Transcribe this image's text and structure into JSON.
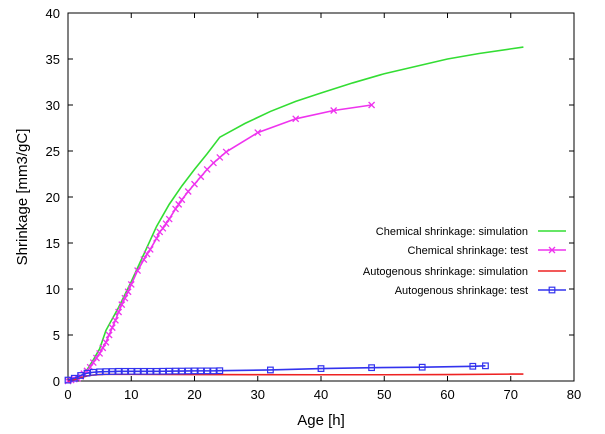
{
  "chart_data": {
    "type": "line",
    "xlabel": "Age [h]",
    "ylabel": "Shrinkage [mm3/gC]",
    "xlim": [
      0,
      80
    ],
    "ylim": [
      0,
      40
    ],
    "xticks": [
      0,
      10,
      20,
      30,
      40,
      50,
      60,
      70,
      80
    ],
    "yticks": [
      0,
      5,
      10,
      15,
      20,
      25,
      30,
      35,
      40
    ],
    "grid": false,
    "legend_position": "right",
    "series": [
      {
        "name": "Chemical shrinkage: simulation",
        "color": "#33dd33",
        "marker": "none",
        "x": [
          0,
          1,
          2,
          3,
          4,
          5,
          6,
          8,
          10,
          12,
          14,
          16,
          18,
          20,
          22,
          24,
          28,
          32,
          36,
          40,
          45,
          50,
          55,
          60,
          65,
          70,
          72
        ],
        "y": [
          0,
          0.2,
          0.5,
          1.2,
          2.3,
          3.5,
          5.5,
          8.0,
          10.8,
          13.8,
          16.8,
          19.2,
          21.2,
          23.0,
          24.7,
          26.5,
          28.0,
          29.3,
          30.4,
          31.3,
          32.4,
          33.4,
          34.2,
          35.0,
          35.6,
          36.1,
          36.3
        ]
      },
      {
        "name": "Chemical shrinkage: test",
        "color": "#ee33ee",
        "marker": "x",
        "x": [
          0,
          0.5,
          1,
          1.5,
          2,
          2.5,
          3,
          3.5,
          4,
          4.5,
          5,
          5.5,
          6,
          6.5,
          7,
          7.5,
          8,
          8.5,
          9,
          9.5,
          10,
          11,
          12,
          12.5,
          13,
          14,
          14.5,
          15,
          15.5,
          16,
          17,
          17.5,
          18,
          19,
          20,
          21,
          22,
          23,
          24,
          25,
          30,
          36,
          42,
          48
        ],
        "y": [
          0,
          0.1,
          0.2,
          0.3,
          0.5,
          0.8,
          1.1,
          1.5,
          2.0,
          2.5,
          3.0,
          3.6,
          4.2,
          5.0,
          5.8,
          6.6,
          7.5,
          8.3,
          9.0,
          9.7,
          10.5,
          12.0,
          13.2,
          13.8,
          14.3,
          15.5,
          16.2,
          16.6,
          17.1,
          17.6,
          18.7,
          19.2,
          19.7,
          20.6,
          21.4,
          22.2,
          23.0,
          23.7,
          24.3,
          24.9,
          27.0,
          28.5,
          29.4,
          30.0
        ]
      },
      {
        "name": "Autogenous shrinkage: simulation",
        "color": "#ee2222",
        "marker": "none",
        "x": [
          0,
          1,
          2,
          3,
          4,
          5,
          6,
          10,
          20,
          30,
          40,
          50,
          60,
          70,
          72
        ],
        "y": [
          0,
          0.15,
          0.35,
          0.55,
          0.65,
          0.7,
          0.72,
          0.72,
          0.7,
          0.69,
          0.68,
          0.68,
          0.7,
          0.75,
          0.75
        ]
      },
      {
        "name": "Autogenous shrinkage: test",
        "color": "#3333ee",
        "marker": "square",
        "x": [
          0,
          1,
          2,
          3,
          4,
          5,
          6,
          7,
          8,
          9,
          10,
          11,
          12,
          13,
          14,
          15,
          16,
          17,
          18,
          19,
          20,
          21,
          22,
          23,
          24,
          32,
          40,
          48,
          56,
          64,
          66
        ],
        "y": [
          0.1,
          0.3,
          0.6,
          0.85,
          0.95,
          1.0,
          1.02,
          1.03,
          1.05,
          1.05,
          1.05,
          1.05,
          1.05,
          1.05,
          1.05,
          1.06,
          1.07,
          1.08,
          1.08,
          1.09,
          1.1,
          1.1,
          1.1,
          1.1,
          1.12,
          1.2,
          1.35,
          1.45,
          1.5,
          1.6,
          1.65
        ]
      }
    ]
  }
}
